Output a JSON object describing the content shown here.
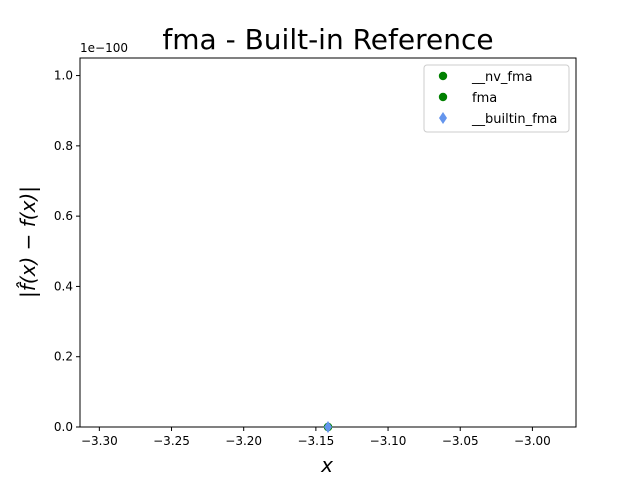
{
  "chart_data": {
    "type": "scatter",
    "title": "fma - Built-in Reference",
    "xlabel": "x",
    "ylabel": "|f̂(x) − f(x)|",
    "y_offset_text": "1e−100",
    "xlim": [
      -3.3134,
      -2.9698
    ],
    "ylim": [
      0,
      1.05
    ],
    "x_ticks": [
      -3.3,
      -3.25,
      -3.2,
      -3.15,
      -3.1,
      -3.05,
      -3.0
    ],
    "x_tick_labels": [
      "−3.30",
      "−3.25",
      "−3.20",
      "−3.15",
      "−3.10",
      "−3.05",
      "−3.00"
    ],
    "y_ticks": [
      0.0,
      0.2,
      0.4,
      0.6,
      0.8,
      1.0
    ],
    "y_tick_labels": [
      "0.0",
      "0.2",
      "0.4",
      "0.6",
      "0.8",
      "1.0"
    ],
    "legend_position": "top-right",
    "grid": false,
    "series": [
      {
        "name": "__nv_fma",
        "marker": "circle",
        "color": "#008000",
        "x": [
          -3.1416
        ],
        "y": [
          0
        ]
      },
      {
        "name": "fma",
        "marker": "circle",
        "color": "#008000",
        "x": [
          -3.1416
        ],
        "y": [
          0
        ]
      },
      {
        "name": "__builtin_fma",
        "marker": "diamond",
        "color": "#6495ED",
        "x": [
          -3.1416
        ],
        "y": [
          0
        ]
      }
    ]
  }
}
